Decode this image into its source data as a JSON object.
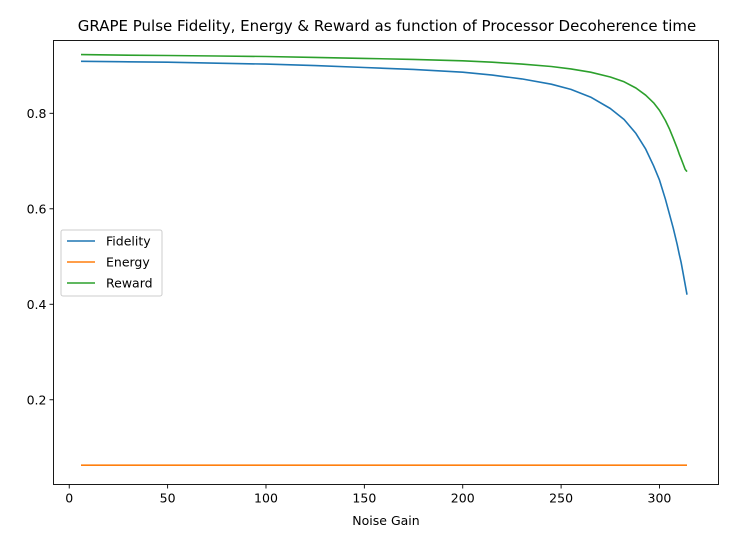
{
  "chart_data": {
    "type": "line",
    "title": "GRAPE Pulse Fidelity, Energy & Reward as function of Processor Decoherence time",
    "xlabel": "Noise Gain",
    "ylabel": "",
    "xlim": [
      -8,
      330
    ],
    "ylim": [
      0.0225,
      0.9525
    ],
    "xticks": [
      0,
      50,
      100,
      150,
      200,
      250,
      300
    ],
    "xtick_labels": [
      "0",
      "50",
      "100",
      "150",
      "200",
      "250",
      "300"
    ],
    "yticks": [
      0.2,
      0.4,
      0.6,
      0.8
    ],
    "ytick_labels": [
      "0.2",
      "0.4",
      "0.6",
      "0.8"
    ],
    "grid": false,
    "legend_position": "center-left",
    "x": [
      6,
      25,
      50,
      75,
      100,
      125,
      150,
      175,
      200,
      215,
      230,
      245,
      255,
      265,
      275,
      282,
      288,
      293,
      297,
      300,
      303,
      305,
      307,
      309,
      310,
      311,
      312,
      313,
      314
    ],
    "series": [
      {
        "name": "Fidelity",
        "color": "#1f77b4",
        "values": [
          0.909,
          0.908,
          0.907,
          0.905,
          0.903,
          0.9,
          0.896,
          0.892,
          0.886,
          0.88,
          0.872,
          0.861,
          0.85,
          0.834,
          0.81,
          0.787,
          0.758,
          0.725,
          0.69,
          0.66,
          0.62,
          0.59,
          0.56,
          0.525,
          0.505,
          0.488,
          0.465,
          0.442,
          0.42
        ]
      },
      {
        "name": "Energy",
        "color": "#ff7f0e",
        "values": [
          0.063,
          0.063,
          0.063,
          0.063,
          0.063,
          0.063,
          0.063,
          0.063,
          0.063,
          0.063,
          0.063,
          0.063,
          0.063,
          0.063,
          0.063,
          0.063,
          0.063,
          0.063,
          0.063,
          0.063,
          0.063,
          0.063,
          0.063,
          0.063,
          0.063,
          0.063,
          0.063,
          0.063,
          0.063
        ]
      },
      {
        "name": "Reward",
        "color": "#2ca02c",
        "values": [
          0.923,
          0.922,
          0.921,
          0.92,
          0.919,
          0.917,
          0.915,
          0.913,
          0.91,
          0.907,
          0.903,
          0.898,
          0.893,
          0.886,
          0.876,
          0.866,
          0.853,
          0.838,
          0.822,
          0.806,
          0.785,
          0.768,
          0.748,
          0.727,
          0.715,
          0.705,
          0.694,
          0.683,
          0.678
        ]
      }
    ]
  }
}
